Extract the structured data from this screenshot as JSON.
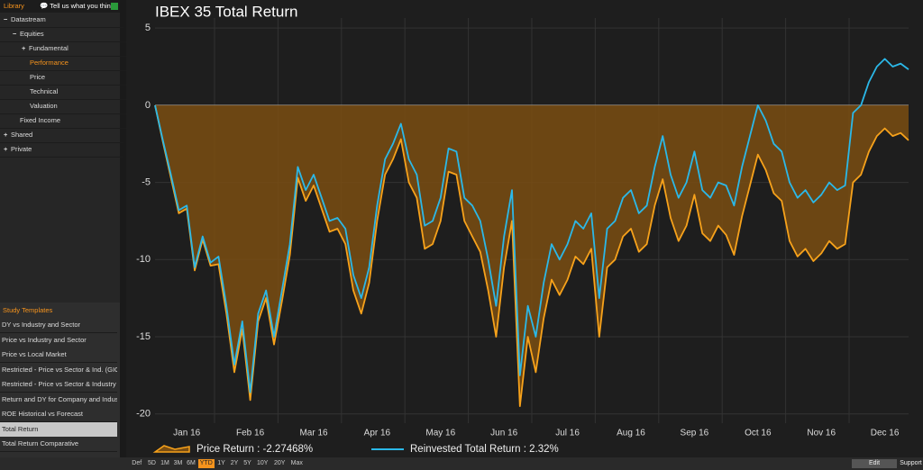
{
  "sidebar": {
    "header": {
      "title": "Library",
      "feedback": "Tell us what you think"
    },
    "tree": [
      "Datastream",
      "Equities",
      "Fundamental",
      "Performance",
      "Price",
      "Technical",
      "Valuation",
      "Fixed Income",
      "Shared",
      "Private"
    ],
    "study_templates": {
      "title": "Study Templates",
      "items": [
        "DY vs Industry and Sector",
        "Price vs Industry and Sector",
        "Price vs Local Market",
        "Restricted - Price vs Sector & Ind. (GICS) vs",
        "Restricted - Price vs Sector & Industry (GIC",
        "Return and DY for Company and Industry",
        "ROE Historical vs Forecast",
        "Total Return",
        "Total Return Comparative"
      ]
    }
  },
  "toolbar": {
    "periods": [
      "Def",
      "5D",
      "1M",
      "3M",
      "6M",
      "YTD",
      "1Y",
      "2Y",
      "5Y",
      "10Y",
      "20Y",
      "Max"
    ],
    "selected_period": "YTD",
    "edit": "Edit",
    "support": "Support"
  },
  "chart_data": {
    "type": "line",
    "title": "IBEX 35 Total Return",
    "categories": [
      null,
      null,
      null,
      null,
      "Jan 16",
      null,
      null,
      null,
      null,
      null,
      null,
      null,
      "Feb 16",
      null,
      null,
      null,
      null,
      null,
      null,
      null,
      "Mar 16",
      null,
      null,
      null,
      null,
      null,
      null,
      null,
      "Apr 16",
      null,
      null,
      null,
      null,
      null,
      null,
      null,
      "May 16",
      null,
      null,
      null,
      null,
      null,
      null,
      null,
      "Jun 16",
      null,
      null,
      null,
      null,
      null,
      null,
      null,
      "Jul 16",
      null,
      null,
      null,
      null,
      null,
      null,
      null,
      "Aug 16",
      null,
      null,
      null,
      null,
      null,
      null,
      null,
      "Sep 16",
      null,
      null,
      null,
      null,
      null,
      null,
      null,
      "Oct 16",
      null,
      null,
      null,
      null,
      null,
      null,
      null,
      "Nov 16",
      null,
      null,
      null,
      null,
      null,
      null,
      null,
      "Dec 16",
      null,
      null,
      null
    ],
    "series": [
      {
        "name": "Price Return : -2.27468%",
        "color": "#f7a21b",
        "area_color": "#7a4e12",
        "area": true,
        "values": [
          0,
          -2.4,
          -4.7,
          -7,
          -6.7,
          -10.7,
          -8.7,
          -10.4,
          -10.3,
          -13.5,
          -17.3,
          -14.5,
          -19.1,
          -14,
          -12.5,
          -15.5,
          -12.7,
          -9.7,
          -4.7,
          -6.2,
          -5.2,
          -6.7,
          -8.2,
          -8,
          -9,
          -12,
          -13.5,
          -11.5,
          -7.5,
          -4.5,
          -3.5,
          -2.2,
          -5,
          -6,
          -9.3,
          -9,
          -7.5,
          -4.3,
          -4.5,
          -7.5,
          -8.5,
          -9.5,
          -12,
          -15,
          -10.5,
          -7.5,
          -19.5,
          -15,
          -17.3,
          -13.8,
          -11.3,
          -12.3,
          -11.3,
          -9.8,
          -10.3,
          -9.3,
          -15,
          -10.5,
          -10,
          -8.5,
          -8,
          -9.5,
          -9,
          -6.5,
          -4.8,
          -7.3,
          -8.8,
          -7.8,
          -5.8,
          -8.3,
          -8.8,
          -7.8,
          -8.4,
          -9.7,
          -7.2,
          -5.2,
          -3.2,
          -4.2,
          -5.7,
          -6.2,
          -8.8,
          -9.8,
          -9.3,
          -10.1,
          -9.6,
          -8.8,
          -9.3,
          -9,
          -5,
          -4.5,
          -3,
          -2,
          -1.5,
          -2,
          -1.8,
          -2.27
        ]
      },
      {
        "name": "Reinvested Total Return : 2.32%",
        "color": "#2bb8e8",
        "values": [
          0,
          -2.3,
          -4.5,
          -6.8,
          -6.5,
          -10.5,
          -8.5,
          -10.2,
          -9.8,
          -13,
          -16.8,
          -14,
          -18.6,
          -13.5,
          -12,
          -15,
          -12,
          -9,
          -4,
          -5.5,
          -4.5,
          -6,
          -7.5,
          -7.3,
          -8,
          -11,
          -12.5,
          -10.5,
          -6.5,
          -3.5,
          -2.5,
          -1.2,
          -3.5,
          -4.5,
          -7.8,
          -7.5,
          -6,
          -2.8,
          -3,
          -6,
          -6.5,
          -7.5,
          -10,
          -13,
          -8.5,
          -5.5,
          -17.5,
          -13,
          -15,
          -11.5,
          -9,
          -10,
          -9,
          -7.5,
          -8,
          -7,
          -12.5,
          -8,
          -7.5,
          -6,
          -5.5,
          -7,
          -6.5,
          -4,
          -2,
          -4.5,
          -6,
          -5,
          -3,
          -5.5,
          -6,
          -5,
          -5.2,
          -6.5,
          -4,
          -2,
          0,
          -1,
          -2.5,
          -3,
          -5,
          -6,
          -5.5,
          -6.3,
          -5.8,
          -5,
          -5.5,
          -5.2,
          -0.5,
          0,
          1.5,
          2.5,
          3,
          2.5,
          2.7,
          2.32
        ]
      }
    ],
    "ylim": [
      -20.6,
      5.65
    ],
    "yticks": [
      5,
      0,
      -5,
      -10,
      -15,
      -20
    ],
    "grid": true
  }
}
